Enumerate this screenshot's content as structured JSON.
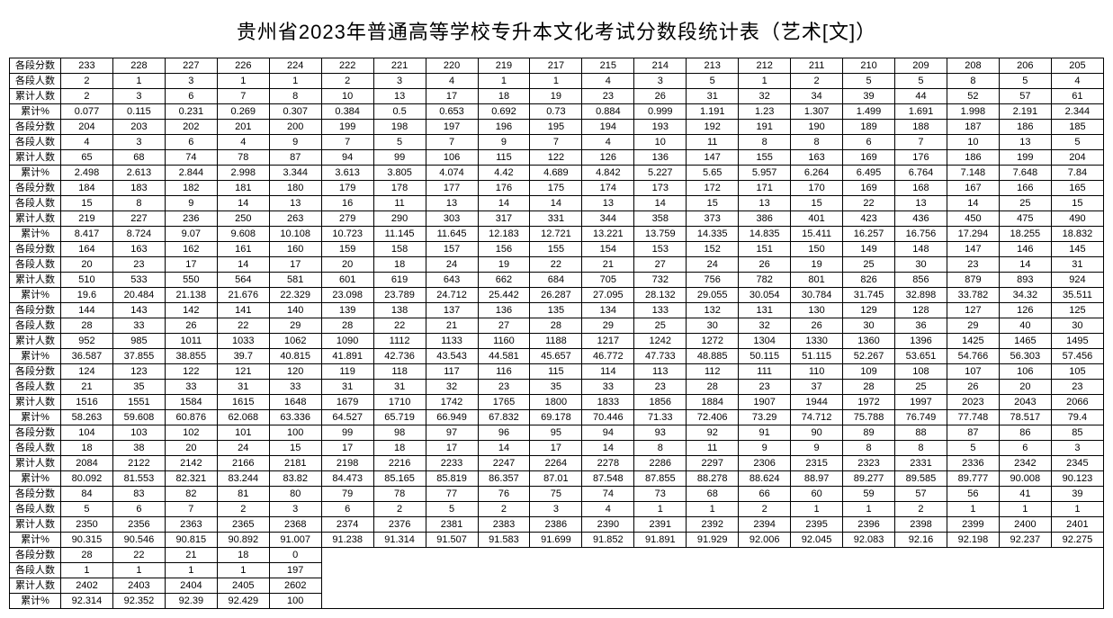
{
  "title": "贵州省2023年普通高等学校专升本文化考试分数段统计表（艺术[文]）",
  "row_labels": [
    "各段分数",
    "各段人数",
    "累计人数",
    "累计%"
  ],
  "columns_per_block": 20,
  "blocks": [
    {
      "score": [
        233,
        228,
        227,
        226,
        224,
        222,
        221,
        220,
        219,
        217,
        215,
        214,
        213,
        212,
        211,
        210,
        209,
        208,
        206,
        205
      ],
      "count": [
        2,
        1,
        3,
        1,
        1,
        2,
        3,
        4,
        1,
        1,
        4,
        3,
        5,
        1,
        2,
        5,
        5,
        8,
        5,
        4
      ],
      "cum": [
        2,
        3,
        6,
        7,
        8,
        10,
        13,
        17,
        18,
        19,
        23,
        26,
        31,
        32,
        34,
        39,
        44,
        52,
        57,
        61
      ],
      "pct": [
        "0.077",
        "0.115",
        "0.231",
        "0.269",
        "0.307",
        "0.384",
        "0.5",
        "0.653",
        "0.692",
        "0.73",
        "0.884",
        "0.999",
        "1.191",
        "1.23",
        "1.307",
        "1.499",
        "1.691",
        "1.998",
        "2.191",
        "2.344"
      ]
    },
    {
      "score": [
        204,
        203,
        202,
        201,
        200,
        199,
        198,
        197,
        196,
        195,
        194,
        193,
        192,
        191,
        190,
        189,
        188,
        187,
        186,
        185
      ],
      "count": [
        4,
        3,
        6,
        4,
        9,
        7,
        5,
        7,
        9,
        7,
        4,
        10,
        11,
        8,
        8,
        6,
        7,
        10,
        13,
        5
      ],
      "cum": [
        65,
        68,
        74,
        78,
        87,
        94,
        99,
        106,
        115,
        122,
        126,
        136,
        147,
        155,
        163,
        169,
        176,
        186,
        199,
        204
      ],
      "pct": [
        "2.498",
        "2.613",
        "2.844",
        "2.998",
        "3.344",
        "3.613",
        "3.805",
        "4.074",
        "4.42",
        "4.689",
        "4.842",
        "5.227",
        "5.65",
        "5.957",
        "6.264",
        "6.495",
        "6.764",
        "7.148",
        "7.648",
        "7.84"
      ]
    },
    {
      "score": [
        184,
        183,
        182,
        181,
        180,
        179,
        178,
        177,
        176,
        175,
        174,
        173,
        172,
        171,
        170,
        169,
        168,
        167,
        166,
        165
      ],
      "count": [
        15,
        8,
        9,
        14,
        13,
        16,
        11,
        13,
        14,
        14,
        13,
        14,
        15,
        13,
        15,
        22,
        13,
        14,
        25,
        15
      ],
      "cum": [
        219,
        227,
        236,
        250,
        263,
        279,
        290,
        303,
        317,
        331,
        344,
        358,
        373,
        386,
        401,
        423,
        436,
        450,
        475,
        490
      ],
      "pct": [
        "8.417",
        "8.724",
        "9.07",
        "9.608",
        "10.108",
        "10.723",
        "11.145",
        "11.645",
        "12.183",
        "12.721",
        "13.221",
        "13.759",
        "14.335",
        "14.835",
        "15.411",
        "16.257",
        "16.756",
        "17.294",
        "18.255",
        "18.832"
      ]
    },
    {
      "score": [
        164,
        163,
        162,
        161,
        160,
        159,
        158,
        157,
        156,
        155,
        154,
        153,
        152,
        151,
        150,
        149,
        148,
        147,
        146,
        145
      ],
      "count": [
        20,
        23,
        17,
        14,
        17,
        20,
        18,
        24,
        19,
        22,
        21,
        27,
        24,
        26,
        19,
        25,
        30,
        23,
        14,
        31
      ],
      "cum": [
        510,
        533,
        550,
        564,
        581,
        601,
        619,
        643,
        662,
        684,
        705,
        732,
        756,
        782,
        801,
        826,
        856,
        879,
        893,
        924
      ],
      "pct": [
        "19.6",
        "20.484",
        "21.138",
        "21.676",
        "22.329",
        "23.098",
        "23.789",
        "24.712",
        "25.442",
        "26.287",
        "27.095",
        "28.132",
        "29.055",
        "30.054",
        "30.784",
        "31.745",
        "32.898",
        "33.782",
        "34.32",
        "35.511"
      ]
    },
    {
      "score": [
        144,
        143,
        142,
        141,
        140,
        139,
        138,
        137,
        136,
        135,
        134,
        133,
        132,
        131,
        130,
        129,
        128,
        127,
        126,
        125
      ],
      "count": [
        28,
        33,
        26,
        22,
        29,
        28,
        22,
        21,
        27,
        28,
        29,
        25,
        30,
        32,
        26,
        30,
        36,
        29,
        40,
        30
      ],
      "cum": [
        952,
        985,
        1011,
        1033,
        1062,
        1090,
        1112,
        1133,
        1160,
        1188,
        1217,
        1242,
        1272,
        1304,
        1330,
        1360,
        1396,
        1425,
        1465,
        1495
      ],
      "pct": [
        "36.587",
        "37.855",
        "38.855",
        "39.7",
        "40.815",
        "41.891",
        "42.736",
        "43.543",
        "44.581",
        "45.657",
        "46.772",
        "47.733",
        "48.885",
        "50.115",
        "51.115",
        "52.267",
        "53.651",
        "54.766",
        "56.303",
        "57.456"
      ]
    },
    {
      "score": [
        124,
        123,
        122,
        121,
        120,
        119,
        118,
        117,
        116,
        115,
        114,
        113,
        112,
        111,
        110,
        109,
        108,
        107,
        106,
        105
      ],
      "count": [
        21,
        35,
        33,
        31,
        33,
        31,
        31,
        32,
        23,
        35,
        33,
        23,
        28,
        23,
        37,
        28,
        25,
        26,
        20,
        23
      ],
      "cum": [
        1516,
        1551,
        1584,
        1615,
        1648,
        1679,
        1710,
        1742,
        1765,
        1800,
        1833,
        1856,
        1884,
        1907,
        1944,
        1972,
        1997,
        2023,
        2043,
        2066
      ],
      "pct": [
        "58.263",
        "59.608",
        "60.876",
        "62.068",
        "63.336",
        "64.527",
        "65.719",
        "66.949",
        "67.832",
        "69.178",
        "70.446",
        "71.33",
        "72.406",
        "73.29",
        "74.712",
        "75.788",
        "76.749",
        "77.748",
        "78.517",
        "79.4"
      ]
    },
    {
      "score": [
        104,
        103,
        102,
        101,
        100,
        99,
        98,
        97,
        96,
        95,
        94,
        93,
        92,
        91,
        90,
        89,
        88,
        87,
        86,
        85
      ],
      "count": [
        18,
        38,
        20,
        24,
        15,
        17,
        18,
        17,
        14,
        17,
        14,
        8,
        11,
        9,
        9,
        8,
        8,
        5,
        6,
        3
      ],
      "cum": [
        2084,
        2122,
        2142,
        2166,
        2181,
        2198,
        2216,
        2233,
        2247,
        2264,
        2278,
        2286,
        2297,
        2306,
        2315,
        2323,
        2331,
        2336,
        2342,
        2345
      ],
      "pct": [
        "80.092",
        "81.553",
        "82.321",
        "83.244",
        "83.82",
        "84.473",
        "85.165",
        "85.819",
        "86.357",
        "87.01",
        "87.548",
        "87.855",
        "88.278",
        "88.624",
        "88.97",
        "89.277",
        "89.585",
        "89.777",
        "90.008",
        "90.123"
      ]
    },
    {
      "score": [
        84,
        83,
        82,
        81,
        80,
        79,
        78,
        77,
        76,
        75,
        74,
        73,
        68,
        66,
        60,
        59,
        57,
        56,
        41,
        39
      ],
      "count": [
        5,
        6,
        7,
        2,
        3,
        6,
        2,
        5,
        2,
        3,
        4,
        1,
        1,
        2,
        1,
        1,
        2,
        1,
        1,
        1
      ],
      "cum": [
        2350,
        2356,
        2363,
        2365,
        2368,
        2374,
        2376,
        2381,
        2383,
        2386,
        2390,
        2391,
        2392,
        2394,
        2395,
        2396,
        2398,
        2399,
        2400,
        2401
      ],
      "pct": [
        "90.315",
        "90.546",
        "90.815",
        "90.892",
        "91.007",
        "91.238",
        "91.314",
        "91.507",
        "91.583",
        "91.699",
        "91.852",
        "91.891",
        "91.929",
        "92.006",
        "92.045",
        "92.083",
        "92.16",
        "92.198",
        "92.237",
        "92.275"
      ]
    },
    {
      "score": [
        28,
        22,
        21,
        18,
        0,
        "",
        "",
        "",
        "",
        "",
        "",
        "",
        "",
        "",
        "",
        "",
        "",
        "",
        "",
        ""
      ],
      "count": [
        1,
        1,
        1,
        1,
        197,
        "",
        "",
        "",
        "",
        "",
        "",
        "",
        "",
        "",
        "",
        "",
        "",
        "",
        "",
        ""
      ],
      "cum": [
        2402,
        2403,
        2404,
        2405,
        2602,
        "",
        "",
        "",
        "",
        "",
        "",
        "",
        "",
        "",
        "",
        "",
        "",
        "",
        "",
        ""
      ],
      "pct": [
        "92.314",
        "92.352",
        "92.39",
        "92.429",
        "100",
        "",
        "",
        "",
        "",
        "",
        "",
        "",
        "",
        "",
        "",
        "",
        "",
        "",
        "",
        ""
      ]
    }
  ],
  "style": {
    "border_color": "#000000",
    "background": "#ffffff",
    "title_fontsize": 22,
    "cell_fontsize": 11
  }
}
